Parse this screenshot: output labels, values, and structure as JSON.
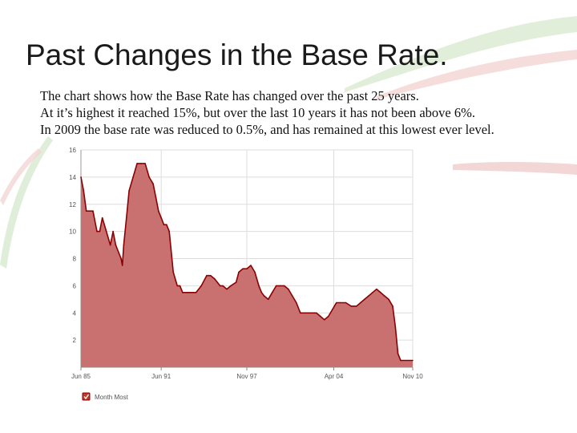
{
  "slide": {
    "title": "Past Changes in the Base Rate.",
    "lines": [
      "The chart shows how the Base Rate has changed over the past 25 years.",
      "At it’s highest it reached 15%, but over the last 10 years it has not been above 6%.",
      "In 2009 the base rate was reduced to 0.5%, and has remained at this lowest ever level."
    ]
  },
  "chart_data": {
    "type": "area",
    "title": "",
    "xlabel": "",
    "ylabel": "",
    "ylim": [
      0,
      16
    ],
    "xlim": [
      1985.4,
      2010.2
    ],
    "grid": true,
    "y_ticks": [
      2,
      4,
      6,
      8,
      10,
      12,
      14,
      16
    ],
    "x_ticks": [
      {
        "label": "Jun 85",
        "x": 1985.4
      },
      {
        "label": "Jun 91",
        "x": 1991.4
      },
      {
        "label": "Nov 97",
        "x": 1997.8
      },
      {
        "label": "Apr 04",
        "x": 2004.3
      },
      {
        "label": "Nov 10",
        "x": 2010.2
      }
    ],
    "series": [
      {
        "name": "Month Most",
        "color": "#c97070",
        "line_color": "#8b0000",
        "x": [
          1985.4,
          1985.6,
          1985.8,
          1986.0,
          1986.3,
          1986.6,
          1986.8,
          1987.0,
          1987.3,
          1987.6,
          1987.8,
          1988.0,
          1988.2,
          1988.4,
          1988.5,
          1988.6,
          1988.8,
          1989.0,
          1989.3,
          1989.6,
          1989.9,
          1990.2,
          1990.5,
          1990.8,
          1991.0,
          1991.2,
          1991.4,
          1991.6,
          1991.8,
          1992.0,
          1992.3,
          1992.6,
          1992.8,
          1993.0,
          1993.3,
          1993.6,
          1994.0,
          1994.4,
          1994.8,
          1995.1,
          1995.4,
          1995.8,
          1996.0,
          1996.3,
          1996.6,
          1997.0,
          1997.2,
          1997.5,
          1997.8,
          1998.1,
          1998.4,
          1998.7,
          1998.9,
          1999.1,
          1999.4,
          1999.7,
          2000.0,
          2000.3,
          2000.6,
          2000.9,
          2001.2,
          2001.5,
          2001.8,
          2002.0,
          2002.5,
          2003.0,
          2003.3,
          2003.6,
          2003.9,
          2004.2,
          2004.5,
          2004.8,
          2005.2,
          2005.6,
          2006.0,
          2006.3,
          2006.6,
          2006.9,
          2007.2,
          2007.5,
          2007.8,
          2008.1,
          2008.4,
          2008.7,
          2008.9,
          2009.1,
          2009.3,
          2010.2
        ],
        "values": [
          14.0,
          13.0,
          11.5,
          11.5,
          11.5,
          10.0,
          10.0,
          11.0,
          10.0,
          9.0,
          10.0,
          9.0,
          8.5,
          8.0,
          7.5,
          9.0,
          11.0,
          13.0,
          14.0,
          15.0,
          15.0,
          15.0,
          14.0,
          13.5,
          12.5,
          11.5,
          11.0,
          10.5,
          10.5,
          10.0,
          7.0,
          6.0,
          6.0,
          5.5,
          5.5,
          5.5,
          5.5,
          6.0,
          6.75,
          6.75,
          6.5,
          6.0,
          6.0,
          5.75,
          6.0,
          6.25,
          7.0,
          7.25,
          7.25,
          7.5,
          7.0,
          6.0,
          5.5,
          5.25,
          5.0,
          5.5,
          6.0,
          6.0,
          6.0,
          5.75,
          5.25,
          4.75,
          4.0,
          4.0,
          4.0,
          4.0,
          3.75,
          3.5,
          3.75,
          4.25,
          4.75,
          4.75,
          4.75,
          4.5,
          4.5,
          4.75,
          5.0,
          5.25,
          5.5,
          5.75,
          5.5,
          5.25,
          5.0,
          4.5,
          3.0,
          1.0,
          0.5,
          0.5
        ]
      }
    ],
    "legend": {
      "label": "Month Most",
      "checked": true,
      "position": "bottom-left"
    }
  }
}
